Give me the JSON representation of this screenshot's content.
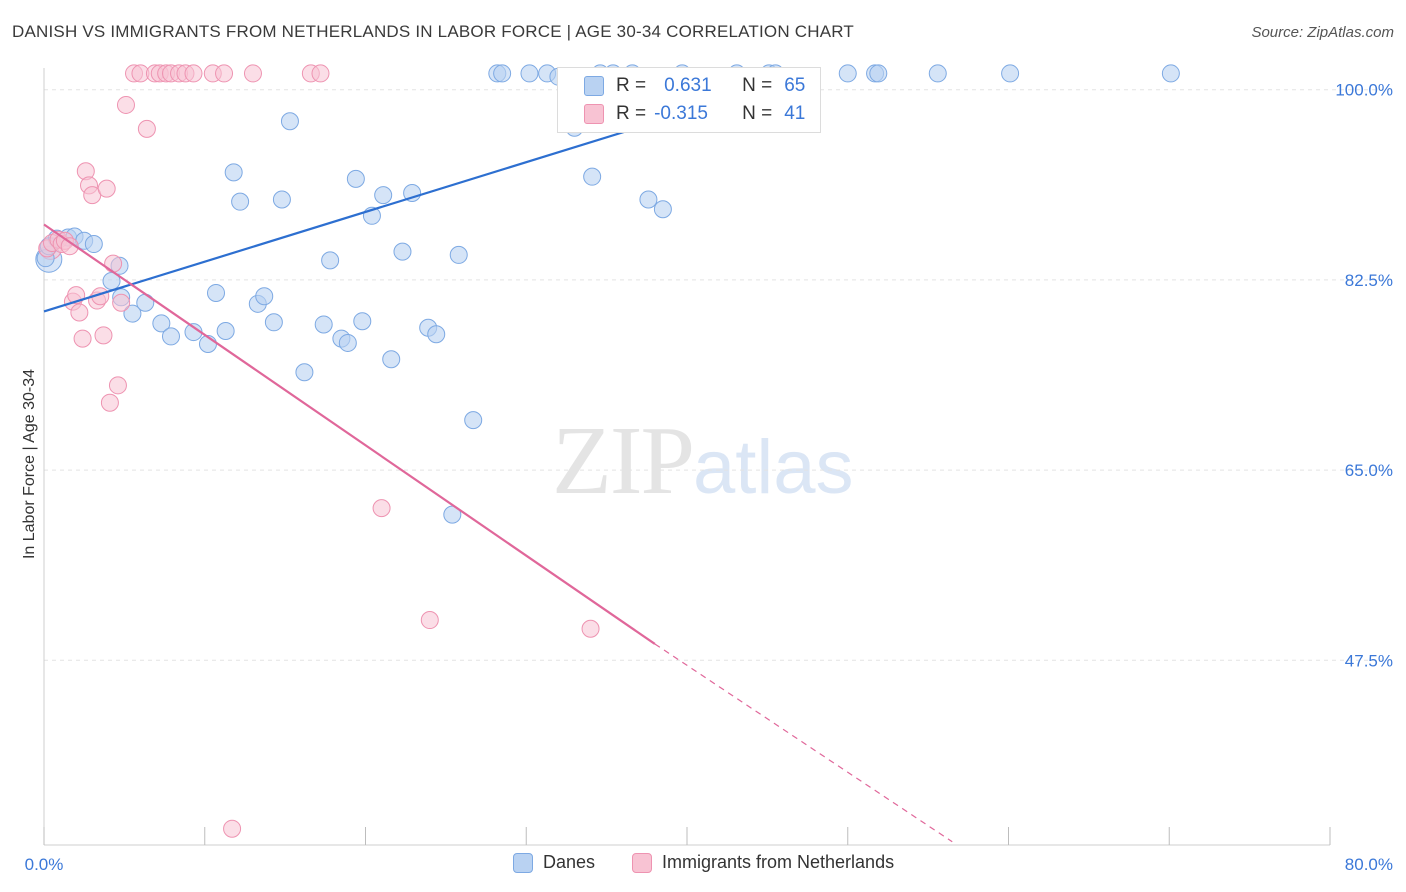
{
  "title": "DANISH VS IMMIGRANTS FROM NETHERLANDS IN LABOR FORCE | AGE 30-34 CORRELATION CHART",
  "source": "Source: ZipAtlas.com",
  "watermark": {
    "zip": "ZIP",
    "atlas": "atlas"
  },
  "legend_stats": {
    "r_label": "R =",
    "n_label": "N =",
    "danes": {
      "r": "0.631",
      "n": "65"
    },
    "netherlands": {
      "r": "-0.315",
      "n": "41"
    }
  },
  "colors": {
    "danes_fill": "#b9d2f2",
    "danes_stroke": "#7da9e3",
    "danes_line": "#2d6fd0",
    "nl_fill": "#f8c3d3",
    "nl_stroke": "#ee93b1",
    "nl_line": "#e0679a",
    "axis_text": "#3b78d8",
    "grid": "#e3e3e3"
  },
  "chart_data": {
    "type": "scatter",
    "title": "DANISH VS IMMIGRANTS FROM NETHERLANDS IN LABOR FORCE | AGE 30-34 CORRELATION CHART",
    "xlabel": "",
    "ylabel": "In Labor Force | Age 30-34",
    "xlim": [
      0,
      80
    ],
    "ylim": [
      30.5,
      102
    ],
    "x_tick_labels": [
      "0.0%",
      "80.0%"
    ],
    "y_ticks": [
      47.5,
      65.0,
      82.5,
      100.0
    ],
    "y_tick_labels": [
      "47.5%",
      "65.0%",
      "82.5%",
      "100.0%"
    ],
    "grid": true,
    "legend": "bottom-center",
    "series": [
      {
        "name": "Danes",
        "trendline": {
          "x": [
            0.0,
            45.0
          ],
          "y": [
            79.6,
            100.2
          ]
        },
        "points": [
          [
            0.1,
            84.5
          ],
          [
            0.3,
            85.6
          ],
          [
            0.8,
            86.3
          ],
          [
            1.5,
            86.4
          ],
          [
            1.9,
            86.5
          ],
          [
            2.5,
            86.1
          ],
          [
            3.1,
            85.8
          ],
          [
            4.2,
            82.4
          ],
          [
            4.7,
            83.8
          ],
          [
            4.8,
            80.9
          ],
          [
            5.5,
            79.4
          ],
          [
            6.3,
            80.4
          ],
          [
            7.3,
            78.5
          ],
          [
            7.9,
            77.3
          ],
          [
            9.3,
            77.7
          ],
          [
            10.2,
            76.6
          ],
          [
            10.7,
            81.3
          ],
          [
            11.3,
            77.8
          ],
          [
            11.8,
            92.4
          ],
          [
            12.2,
            89.7
          ],
          [
            13.3,
            80.3
          ],
          [
            13.7,
            81.0
          ],
          [
            14.3,
            78.6
          ],
          [
            14.8,
            89.9
          ],
          [
            15.3,
            97.1
          ],
          [
            16.2,
            74.0
          ],
          [
            17.4,
            78.4
          ],
          [
            17.8,
            84.3
          ],
          [
            18.5,
            77.1
          ],
          [
            18.9,
            76.7
          ],
          [
            19.4,
            91.8
          ],
          [
            19.8,
            78.7
          ],
          [
            20.4,
            88.4
          ],
          [
            21.1,
            90.3
          ],
          [
            21.6,
            75.2
          ],
          [
            22.3,
            85.1
          ],
          [
            22.9,
            90.5
          ],
          [
            23.9,
            78.1
          ],
          [
            24.4,
            77.5
          ],
          [
            25.4,
            60.9
          ],
          [
            25.8,
            84.8
          ],
          [
            26.7,
            69.6
          ],
          [
            28.2,
            101.5
          ],
          [
            28.5,
            101.5
          ],
          [
            30.2,
            101.5
          ],
          [
            31.3,
            101.5
          ],
          [
            32.0,
            101.2
          ],
          [
            33.0,
            96.5
          ],
          [
            34.1,
            92.0
          ],
          [
            34.6,
            101.5
          ],
          [
            35.4,
            101.5
          ],
          [
            36.2,
            98.5
          ],
          [
            36.6,
            101.5
          ],
          [
            37.6,
            89.9
          ],
          [
            38.5,
            89.0
          ],
          [
            39.7,
            101.5
          ],
          [
            43.1,
            101.5
          ],
          [
            45.1,
            101.5
          ],
          [
            45.5,
            101.5
          ],
          [
            50.0,
            101.5
          ],
          [
            51.7,
            101.5
          ],
          [
            51.9,
            101.5
          ],
          [
            55.6,
            101.5
          ],
          [
            60.1,
            101.5
          ],
          [
            70.1,
            101.5
          ]
        ]
      },
      {
        "name": "Immigrants from Netherlands",
        "trendline": {
          "x": [
            0.0,
            38.0
          ],
          "y": [
            87.6,
            49.0
          ],
          "dashed_extension": {
            "x": [
              38.0,
              56.5
            ],
            "y": [
              49.0,
              30.8
            ]
          }
        },
        "points": [
          [
            0.2,
            85.4
          ],
          [
            0.5,
            85.9
          ],
          [
            0.9,
            86.2
          ],
          [
            1.1,
            85.8
          ],
          [
            1.3,
            86.1
          ],
          [
            1.6,
            85.6
          ],
          [
            1.8,
            80.5
          ],
          [
            2.0,
            81.1
          ],
          [
            2.2,
            79.5
          ],
          [
            2.4,
            77.1
          ],
          [
            2.6,
            92.5
          ],
          [
            2.8,
            91.2
          ],
          [
            3.0,
            90.3
          ],
          [
            3.3,
            80.6
          ],
          [
            3.5,
            81.0
          ],
          [
            3.7,
            77.4
          ],
          [
            3.9,
            90.9
          ],
          [
            4.1,
            71.2
          ],
          [
            4.3,
            84.0
          ],
          [
            4.6,
            72.8
          ],
          [
            4.8,
            80.4
          ],
          [
            5.1,
            98.6
          ],
          [
            5.6,
            101.5
          ],
          [
            6.0,
            101.5
          ],
          [
            6.4,
            96.4
          ],
          [
            6.9,
            101.5
          ],
          [
            7.2,
            101.5
          ],
          [
            7.6,
            101.5
          ],
          [
            7.9,
            101.5
          ],
          [
            8.4,
            101.5
          ],
          [
            8.8,
            101.5
          ],
          [
            9.3,
            101.5
          ],
          [
            10.5,
            101.5
          ],
          [
            11.2,
            101.5
          ],
          [
            13.0,
            101.5
          ],
          [
            16.6,
            101.5
          ],
          [
            17.2,
            101.5
          ],
          [
            21.0,
            61.5
          ],
          [
            24.0,
            51.2
          ],
          [
            34.0,
            50.4
          ],
          [
            11.7,
            32.0
          ]
        ]
      }
    ]
  }
}
